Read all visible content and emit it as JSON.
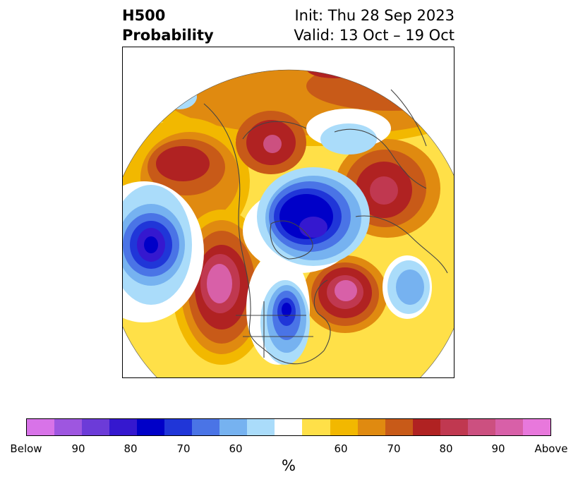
{
  "title": {
    "left_line1": "H500",
    "left_line2": "Probability",
    "right_line1": "Init: Thu 28 Sep 2023",
    "right_line2": "Valid: 13 Oct – 19 Oct"
  },
  "map": {
    "projection": "north polar stereographic",
    "field": "H500 probability"
  },
  "colorbar": {
    "units": "%",
    "colors": [
      "#d873e8",
      "#9e56e0",
      "#6c3bd8",
      "#3518cf",
      "#0000c8",
      "#2036d8",
      "#4a74e6",
      "#76b2f0",
      "#aadcfa",
      "#ffffff",
      "#ffe048",
      "#f2b800",
      "#e08a10",
      "#c85a18",
      "#b02222",
      "#c03850",
      "#cc5080",
      "#d860a8",
      "#e878dc"
    ],
    "labels": [
      "Below",
      "90",
      "80",
      "70",
      "60",
      "60",
      "70",
      "80",
      "90",
      "Above"
    ]
  }
}
